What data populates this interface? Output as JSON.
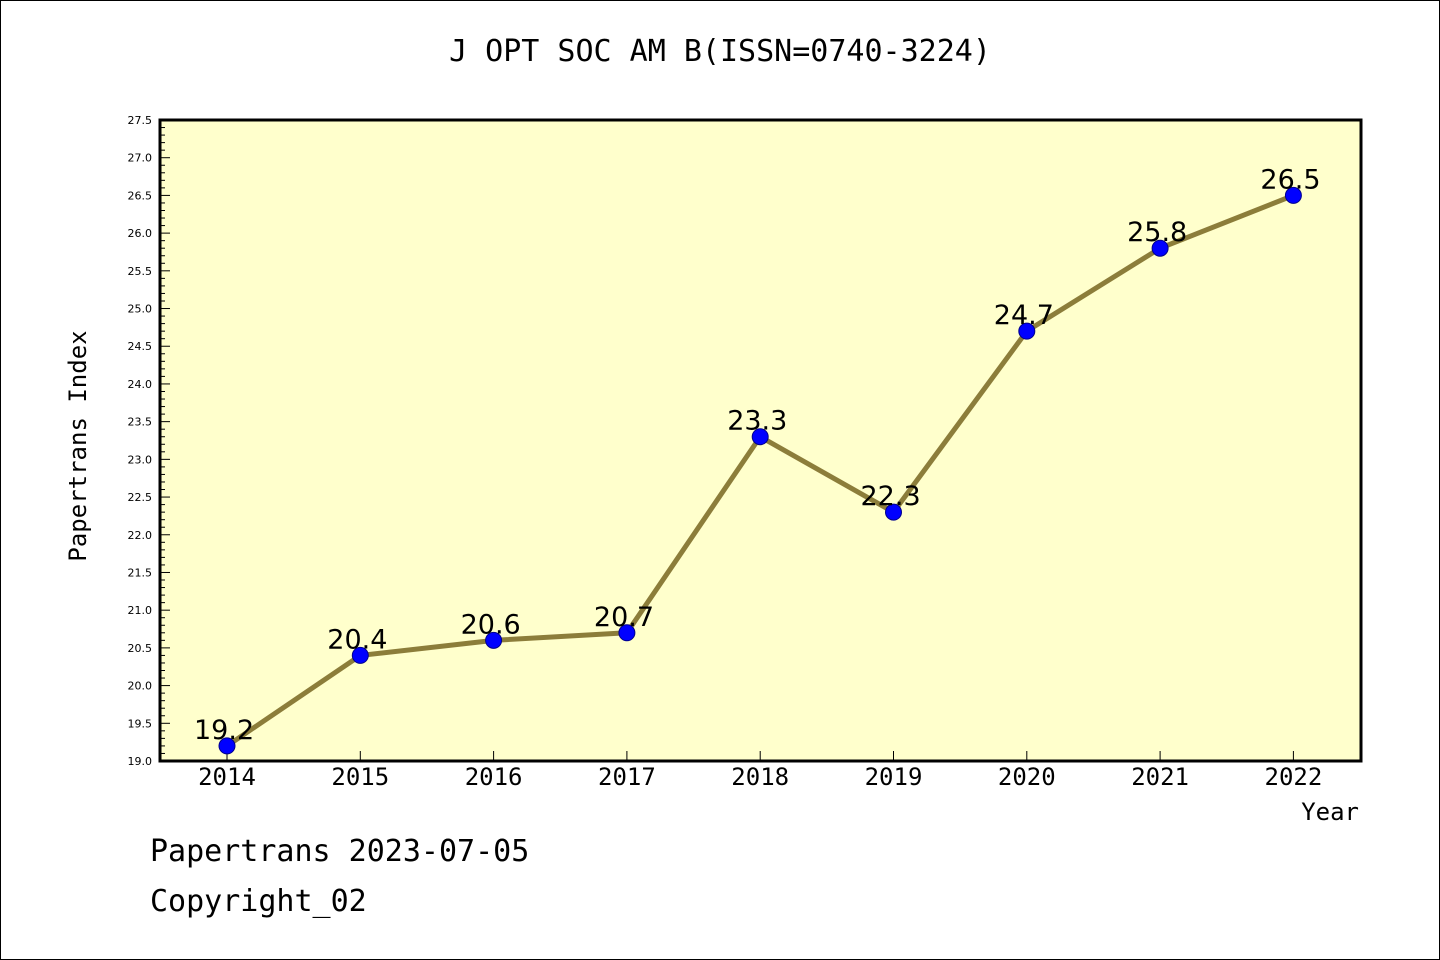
{
  "footer": {
    "line1": "Papertrans 2023-07-05",
    "line2": "Copyright_02"
  },
  "colors": {
    "plot_background": "#ffffcc",
    "line": "#8c7d3a",
    "marker": "#0000ff",
    "axis": "#000000"
  },
  "chart_data": {
    "type": "line",
    "title": "J OPT SOC AM B(ISSN=0740-3224)",
    "xlabel": "Year",
    "ylabel": "Papertrans Index",
    "categories": [
      "2014",
      "2015",
      "2016",
      "2017",
      "2018",
      "2019",
      "2020",
      "2021",
      "2022"
    ],
    "series": [
      {
        "values": [
          19.2,
          20.4,
          20.6,
          20.7,
          23.3,
          22.3,
          24.7,
          25.8,
          26.5
        ],
        "data_labels": [
          "19.2",
          "20.4",
          "20.6",
          "20.7",
          "23.3",
          "22.3",
          "24.7",
          "25.8",
          "26.5"
        ]
      }
    ],
    "ylim": [
      19.0,
      27.5
    ],
    "yticks": [
      "19.0",
      "19.5",
      "20.0",
      "20.5",
      "21.0",
      "21.5",
      "22.0",
      "22.5",
      "23.0",
      "23.5",
      "24.0",
      "24.5",
      "25.0",
      "25.5",
      "26.0",
      "26.5",
      "27.0",
      "27.5"
    ],
    "grid": false,
    "legend": "none"
  }
}
